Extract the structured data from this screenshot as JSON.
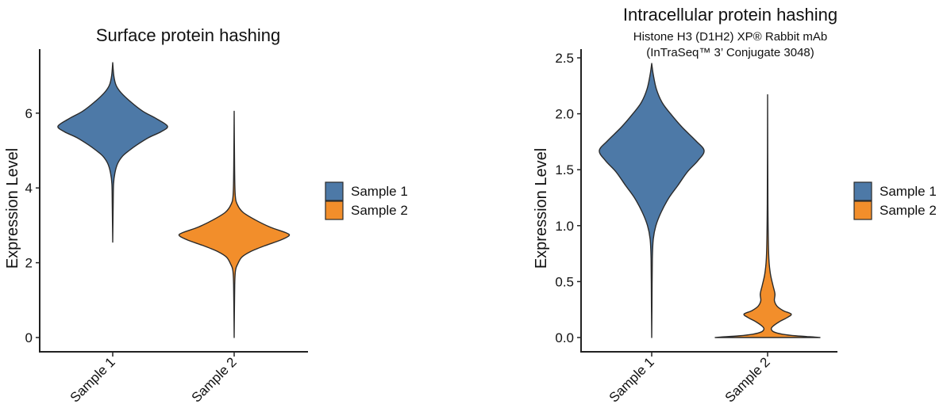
{
  "chart_data": [
    {
      "type": "violin",
      "title": "Surface protein hashing",
      "subtitle": [],
      "ylabel": "Expression Level",
      "xlabel": "",
      "categories": [
        "Sample 1",
        "Sample 2"
      ],
      "ylim": [
        -0.4,
        7.7
      ],
      "yticks": [
        0,
        2,
        4,
        6
      ],
      "ytick_labels": [
        "0",
        "2",
        "4",
        "6"
      ],
      "grid": false,
      "legend": {
        "placement": "right",
        "entries": [
          "Sample 1",
          "Sample 2"
        ]
      },
      "series": [
        {
          "category": "Sample 1",
          "color": "#4d79a7",
          "min": 2.55,
          "max": 7.35,
          "mode": 5.6,
          "density": [
            [
              7.35,
              0
            ],
            [
              7.0,
              0.02
            ],
            [
              6.75,
              0.06
            ],
            [
              6.55,
              0.15
            ],
            [
              6.3,
              0.33
            ],
            [
              6.05,
              0.55
            ],
            [
              5.85,
              0.8
            ],
            [
              5.65,
              1.0
            ],
            [
              5.5,
              0.88
            ],
            [
              5.35,
              0.66
            ],
            [
              5.15,
              0.44
            ],
            [
              5.0,
              0.3
            ],
            [
              4.85,
              0.18
            ],
            [
              4.65,
              0.09
            ],
            [
              4.4,
              0.04
            ],
            [
              4.1,
              0.015
            ],
            [
              3.5,
              0.008
            ],
            [
              2.55,
              0
            ]
          ]
        },
        {
          "category": "Sample 2",
          "color": "#f28e2b",
          "min": 0.0,
          "max": 6.05,
          "mode": 2.75,
          "density": [
            [
              6.05,
              0
            ],
            [
              4.5,
              0.008
            ],
            [
              3.8,
              0.02
            ],
            [
              3.55,
              0.06
            ],
            [
              3.35,
              0.16
            ],
            [
              3.15,
              0.38
            ],
            [
              2.95,
              0.66
            ],
            [
              2.8,
              0.95
            ],
            [
              2.72,
              1.0
            ],
            [
              2.6,
              0.84
            ],
            [
              2.45,
              0.55
            ],
            [
              2.3,
              0.3
            ],
            [
              2.15,
              0.14
            ],
            [
              1.95,
              0.06
            ],
            [
              1.8,
              0.025
            ],
            [
              1.4,
              0.01
            ],
            [
              0.0,
              0
            ]
          ]
        }
      ]
    },
    {
      "type": "violin",
      "title": "Intracellular protein hashing",
      "subtitle": [
        "Histone H3 (D1H2) XP® Rabbit mAb",
        "(InTraSeq™ 3’ Conjugate 3048)"
      ],
      "ylabel": "Expression Level",
      "xlabel": "",
      "categories": [
        "Sample 1",
        "Sample 2"
      ],
      "ylim": [
        -0.13,
        2.6
      ],
      "yticks": [
        0,
        0.5,
        1,
        1.5,
        2,
        2.5
      ],
      "ytick_labels": [
        "0.0",
        "0.5",
        "1.0",
        "1.5",
        "2.0",
        "2.5"
      ],
      "grid": false,
      "legend": {
        "placement": "right",
        "entries": [
          "Sample 1",
          "Sample 2"
        ]
      },
      "series": [
        {
          "category": "Sample 1",
          "color": "#4d79a7",
          "min": 0.0,
          "max": 2.45,
          "mode": 1.67,
          "density": [
            [
              2.45,
              0
            ],
            [
              2.35,
              0.03
            ],
            [
              2.22,
              0.09
            ],
            [
              2.1,
              0.2
            ],
            [
              2.0,
              0.36
            ],
            [
              1.88,
              0.58
            ],
            [
              1.76,
              0.84
            ],
            [
              1.67,
              1.0
            ],
            [
              1.58,
              0.88
            ],
            [
              1.48,
              0.68
            ],
            [
              1.36,
              0.5
            ],
            [
              1.25,
              0.33
            ],
            [
              1.12,
              0.18
            ],
            [
              1.0,
              0.08
            ],
            [
              0.88,
              0.03
            ],
            [
              0.7,
              0.012
            ],
            [
              0.3,
              0.005
            ],
            [
              0.0,
              0
            ]
          ]
        },
        {
          "category": "Sample 2",
          "color": "#f28e2b",
          "min": 0.0,
          "max": 2.17,
          "mode": 0.0,
          "density": [
            [
              2.17,
              0
            ],
            [
              1.2,
              0.006
            ],
            [
              0.75,
              0.02
            ],
            [
              0.58,
              0.05
            ],
            [
              0.47,
              0.1
            ],
            [
              0.39,
              0.14
            ],
            [
              0.33,
              0.13
            ],
            [
              0.28,
              0.18
            ],
            [
              0.24,
              0.3
            ],
            [
              0.21,
              0.45
            ],
            [
              0.18,
              0.38
            ],
            [
              0.14,
              0.22
            ],
            [
              0.1,
              0.1
            ],
            [
              0.075,
              0.07
            ],
            [
              0.05,
              0.12
            ],
            [
              0.03,
              0.28
            ],
            [
              0.015,
              0.55
            ],
            [
              0.004,
              0.9
            ],
            [
              0.0,
              1.0
            ]
          ]
        }
      ]
    }
  ]
}
